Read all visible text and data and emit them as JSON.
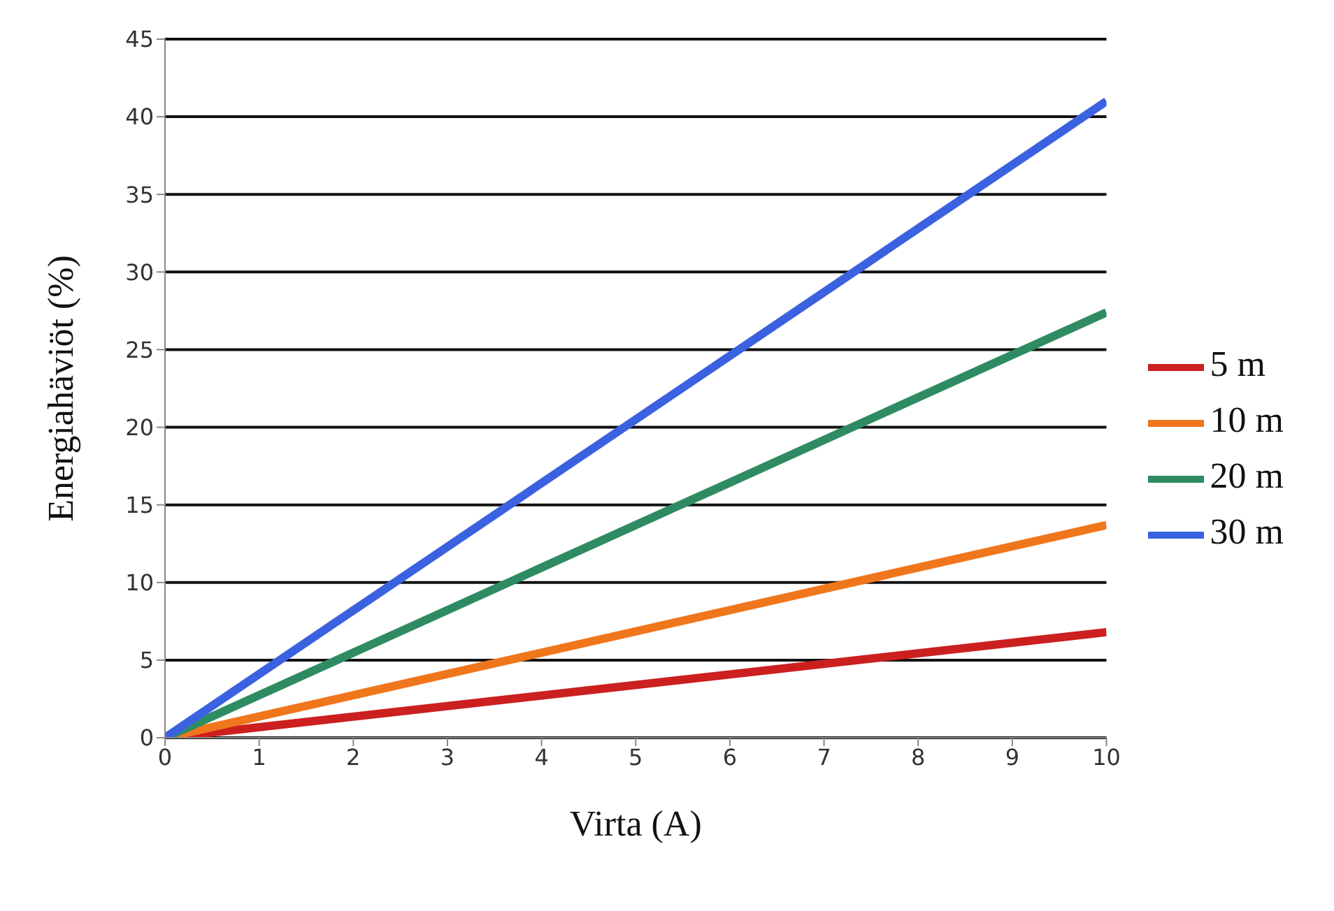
{
  "chart_data": {
    "type": "line",
    "xlabel": "Virta (A)",
    "ylabel": "Energiahäviöt (%)",
    "x": [
      0,
      10
    ],
    "series": [
      {
        "name": "5 m",
        "color": "#cc1f1f",
        "values": [
          0,
          6.8
        ]
      },
      {
        "name": "10 m",
        "color": "#f0761c",
        "values": [
          0,
          13.7
        ]
      },
      {
        "name": "20 m",
        "color": "#2e8b62",
        "values": [
          0,
          27.4
        ]
      },
      {
        "name": "30 m",
        "color": "#3a62e0",
        "values": [
          0,
          41
        ]
      }
    ],
    "xlim": [
      0,
      10
    ],
    "xticks": [
      0,
      1,
      2,
      3,
      4,
      5,
      6,
      7,
      8,
      9,
      10
    ],
    "ylim": [
      0,
      45
    ],
    "yticks": [
      0,
      5,
      10,
      15,
      20,
      25,
      30,
      35,
      40,
      45
    ],
    "grid": "y",
    "legend": "right",
    "marker": "none",
    "line_style": "solid"
  }
}
